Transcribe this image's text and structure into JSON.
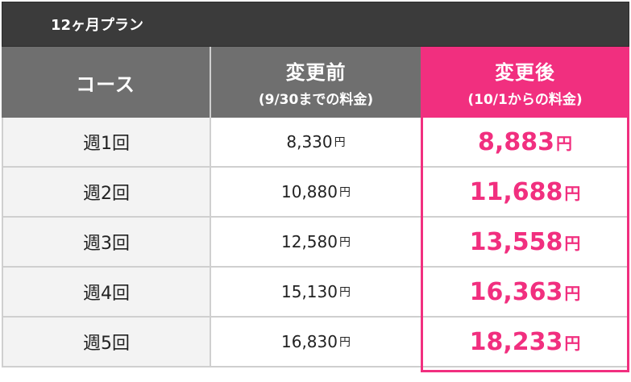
{
  "plan": {
    "title": "12ヶ月プラン"
  },
  "header": {
    "course": "コース",
    "before": {
      "label": "変更前",
      "sub": "(9/30までの料金)"
    },
    "after": {
      "label": "変更後",
      "sub": "(10/1からの料金)"
    }
  },
  "rows": [
    {
      "course": "週1回",
      "before": "8,330",
      "after": "8,883",
      "unit": "円"
    },
    {
      "course": "週2回",
      "before": "10,880",
      "after": "11,688",
      "unit": "円"
    },
    {
      "course": "週3回",
      "before": "12,580",
      "after": "13,558",
      "unit": "円"
    },
    {
      "course": "週4回",
      "before": "15,130",
      "after": "16,363",
      "unit": "円"
    },
    {
      "course": "週5回",
      "before": "16,830",
      "after": "18,233",
      "unit": "円"
    }
  ],
  "colors": {
    "accent": "#f12f7f",
    "header": "#6f6f6f",
    "planBar": "#3b3b3b"
  }
}
